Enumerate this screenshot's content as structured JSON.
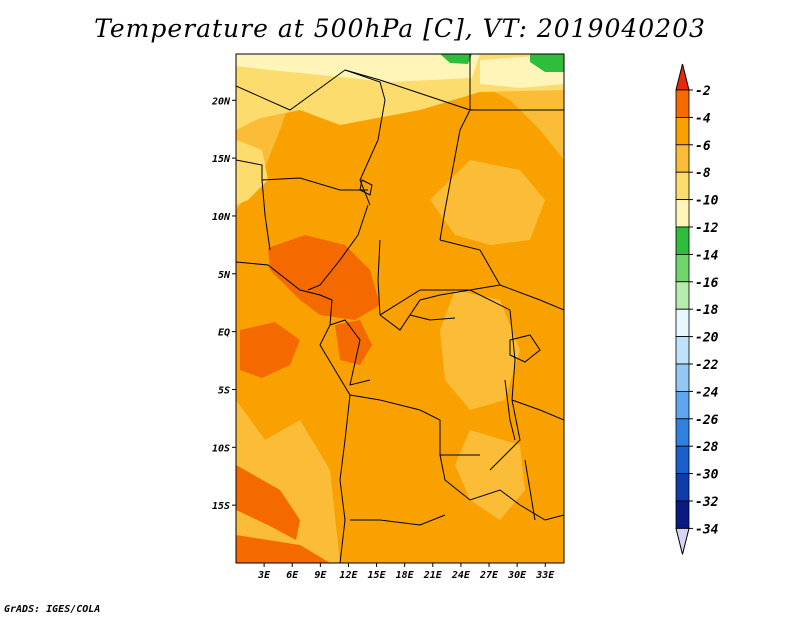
{
  "title": "Temperature at 500hPa [C], VT: 2019040203",
  "credit": "GrADS: IGES/COLA",
  "chart_data": {
    "type": "heatmap",
    "title": "Temperature at 500hPa [C], VT: 2019040203",
    "variable": "Temperature at 500hPa",
    "units": "C",
    "valid_time": "2019040203",
    "x_range": [
      0,
      35
    ],
    "y_range": [
      -20,
      24
    ],
    "x_ticks": [
      3,
      6,
      9,
      12,
      15,
      18,
      21,
      24,
      27,
      30,
      33
    ],
    "x_tick_labels": [
      "3E",
      "6E",
      "9E",
      "12E",
      "15E",
      "18E",
      "21E",
      "24E",
      "27E",
      "30E",
      "33E"
    ],
    "y_ticks": [
      20,
      15,
      10,
      5,
      0,
      -5,
      -10,
      -15
    ],
    "y_tick_labels": [
      "20N",
      "15N",
      "10N",
      "5N",
      "EQ",
      "5S",
      "10S",
      "15S"
    ],
    "colorbar": {
      "labels": [
        "-2",
        "-4",
        "-6",
        "-8",
        "-10",
        "-12",
        "-14",
        "-16",
        "-18",
        "-20",
        "-22",
        "-24",
        "-26",
        "-28",
        "-30",
        "-32",
        "-34"
      ],
      "colors": [
        "#e8280c",
        "#f56a00",
        "#f8a100",
        "#fbbd38",
        "#fddc6e",
        "#fff5b8",
        "#2fbd3c",
        "#6fd56a",
        "#b6ecae",
        "#e8f7fc",
        "#bfe2fb",
        "#93c7f6",
        "#5fa6ee",
        "#2f82e0",
        "#1a5fcc",
        "#0f3ca8",
        "#0a1a80",
        "#d6d4f4"
      ]
    },
    "dominant_range": "-4 to -8",
    "field_max_label": "-4",
    "field_min_label": "-14"
  }
}
